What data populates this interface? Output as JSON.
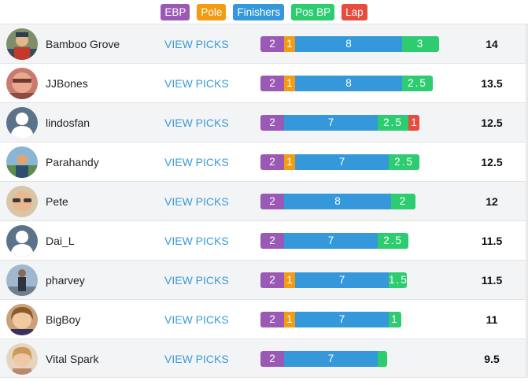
{
  "legend": [
    {
      "key": "ebp",
      "label": "EBP",
      "color": "#9b59b6"
    },
    {
      "key": "pole",
      "label": "Pole",
      "color": "#f39c12"
    },
    {
      "key": "finishers",
      "label": "Finishers",
      "color": "#3498db"
    },
    {
      "key": "posbp",
      "label": "Pos BP",
      "color": "#2ecc71"
    },
    {
      "key": "lap",
      "label": "Lap",
      "color": "#e74c3c"
    }
  ],
  "view_picks_label": "VIEW PICKS",
  "rows": [
    {
      "name": "Bamboo Grove",
      "avatar": "photo-1",
      "points": "14",
      "segments": [
        {
          "type": "ebp",
          "value": 2,
          "label": "2"
        },
        {
          "type": "pole",
          "value": 1,
          "label": "1"
        },
        {
          "type": "finishers",
          "value": 8,
          "label": "8"
        },
        {
          "type": "posbp",
          "value": 3,
          "label": "3"
        }
      ]
    },
    {
      "name": "JJBones",
      "avatar": "photo-2",
      "points": "13.5",
      "segments": [
        {
          "type": "ebp",
          "value": 2,
          "label": "2"
        },
        {
          "type": "pole",
          "value": 1,
          "label": "1"
        },
        {
          "type": "finishers",
          "value": 8,
          "label": "8"
        },
        {
          "type": "posbp",
          "value": 2.5,
          "label": "2.5"
        }
      ]
    },
    {
      "name": "lindosfan",
      "avatar": "default",
      "points": "12.5",
      "segments": [
        {
          "type": "ebp",
          "value": 2,
          "label": "2"
        },
        {
          "type": "finishers",
          "value": 7,
          "label": "7"
        },
        {
          "type": "posbp",
          "value": 2.5,
          "label": "2.5"
        },
        {
          "type": "lap",
          "value": 1,
          "label": "1"
        }
      ]
    },
    {
      "name": "Parahandy",
      "avatar": "photo-3",
      "points": "12.5",
      "segments": [
        {
          "type": "ebp",
          "value": 2,
          "label": "2"
        },
        {
          "type": "pole",
          "value": 1,
          "label": "1"
        },
        {
          "type": "finishers",
          "value": 7,
          "label": "7"
        },
        {
          "type": "posbp",
          "value": 2.5,
          "label": "2.5"
        }
      ]
    },
    {
      "name": "Pete",
      "avatar": "photo-4",
      "points": "12",
      "segments": [
        {
          "type": "ebp",
          "value": 2,
          "label": "2"
        },
        {
          "type": "finishers",
          "value": 8,
          "label": "8"
        },
        {
          "type": "posbp",
          "value": 2,
          "label": "2"
        }
      ]
    },
    {
      "name": "Dai_L",
      "avatar": "default",
      "points": "11.5",
      "segments": [
        {
          "type": "ebp",
          "value": 2,
          "label": "2"
        },
        {
          "type": "finishers",
          "value": 7,
          "label": "7"
        },
        {
          "type": "posbp",
          "value": 2.5,
          "label": "2.5"
        }
      ]
    },
    {
      "name": "pharvey",
      "avatar": "photo-5",
      "points": "11.5",
      "segments": [
        {
          "type": "ebp",
          "value": 2,
          "label": "2"
        },
        {
          "type": "pole",
          "value": 1,
          "label": "1"
        },
        {
          "type": "finishers",
          "value": 7,
          "label": "7"
        },
        {
          "type": "posbp",
          "value": 1.5,
          "label": "1.5"
        }
      ]
    },
    {
      "name": "BigBoy",
      "avatar": "photo-6",
      "points": "11",
      "segments": [
        {
          "type": "ebp",
          "value": 2,
          "label": "2"
        },
        {
          "type": "pole",
          "value": 1,
          "label": "1"
        },
        {
          "type": "finishers",
          "value": 7,
          "label": "7"
        },
        {
          "type": "posbp",
          "value": 1,
          "label": "1"
        }
      ]
    },
    {
      "name": "Vital Spark",
      "avatar": "photo-7",
      "points": "9.5",
      "segments": [
        {
          "type": "ebp",
          "value": 2,
          "label": "2"
        },
        {
          "type": "finishers",
          "value": 7,
          "label": "7"
        },
        {
          "type": "posbp",
          "value": 0.5,
          "label": ""
        }
      ]
    }
  ]
}
